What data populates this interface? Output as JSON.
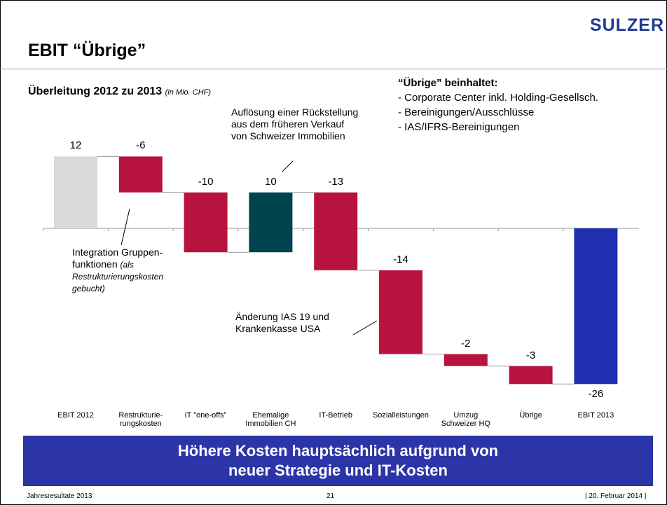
{
  "header": {
    "logo": "SULZER",
    "title": "EBIT “Übrige”"
  },
  "chart_data": {
    "type": "waterfall",
    "title": "Überleitung 2012 zu 2013",
    "subtitle": "(in Mio. CHF)",
    "categories": [
      "EBIT 2012",
      "Restrukturie-\nrungskosten",
      "IT \"one-offs\"",
      "Ehemalige\nImmobilien CH",
      "IT-Betrieb",
      "Sozialleistungen",
      "Umzug\nSchweizer HQ",
      "Übrige",
      "EBIT 2013"
    ],
    "values": [
      12,
      -6,
      -10,
      10,
      -13,
      -14,
      -2,
      -3,
      -26
    ],
    "totals": [
      true,
      false,
      false,
      false,
      false,
      false,
      false,
      false,
      true
    ],
    "colors": [
      "#d9d9d9",
      "#b8133f",
      "#b8133f",
      "#00444f",
      "#b8133f",
      "#b8133f",
      "#b8133f",
      "#b8133f",
      "#1f2fb0"
    ],
    "annotations": [
      {
        "text": "Auflösung einer Rückstellung\naus dem früheren Verkauf\nvon Schweizer Immobilien"
      },
      {
        "text": "Integration Gruppen-\nfunktionen",
        "note": "(als Restrukturierungskosten gebucht)"
      },
      {
        "text": "Änderung IAS 19 und\nKrankenkasse USA"
      }
    ]
  },
  "info": {
    "heading": "“Übrige” beinhaltet:",
    "items": [
      "- Corporate Center inkl. Holding-Gesellsch.",
      "- Bereinigungen/Ausschlüsse",
      "- IAS/IFRS-Bereinigungen"
    ]
  },
  "banner": [
    "Höhere Kosten hauptsächlich aufgrund von",
    "neuer Strategie und IT-Kosten"
  ],
  "footer": {
    "left": "Jahresresultate 2013",
    "center": "21",
    "right": "| 20. Februar 2014 |"
  }
}
